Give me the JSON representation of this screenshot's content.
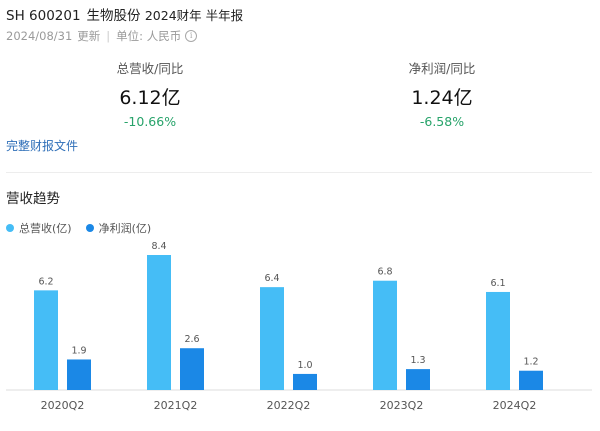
{
  "header": {
    "ticker": "SH 600201",
    "company": "生物股份",
    "period": "2024财年 半年报",
    "date": "2024/08/31",
    "updated_label": "更新",
    "unit_label": "单位: 人民币",
    "info_icon": "info-icon"
  },
  "kpis": [
    {
      "label": "总营收/同比",
      "value": "6.12亿",
      "change": "-10.66%"
    },
    {
      "label": "净利润/同比",
      "value": "1.24亿",
      "change": "-6.58%"
    }
  ],
  "report_link": "完整财报文件",
  "section_title": "营收趋势",
  "colors": {
    "revenue": "#45bdf6",
    "profit": "#1b88e6",
    "positive_change": "#27a36a",
    "link": "#2f6fb8"
  },
  "chart_data": {
    "type": "bar",
    "title": "营收趋势",
    "categories": [
      "2020Q2",
      "2021Q2",
      "2022Q2",
      "2023Q2",
      "2024Q2"
    ],
    "series": [
      {
        "name": "总营收(亿)",
        "values": [
          6.2,
          8.4,
          6.4,
          6.8,
          6.1
        ],
        "labels": [
          "6.2",
          "8.4",
          "6.4",
          "6.8",
          "6.1"
        ]
      },
      {
        "name": "净利润(亿)",
        "values": [
          1.9,
          2.6,
          1.0,
          1.3,
          1.2
        ],
        "labels": [
          "1.9",
          "2.6",
          "1.0",
          "1.3",
          "1.2"
        ]
      }
    ],
    "ylim": [
      0,
      8.4
    ],
    "grid": false,
    "legend": "top-left"
  }
}
